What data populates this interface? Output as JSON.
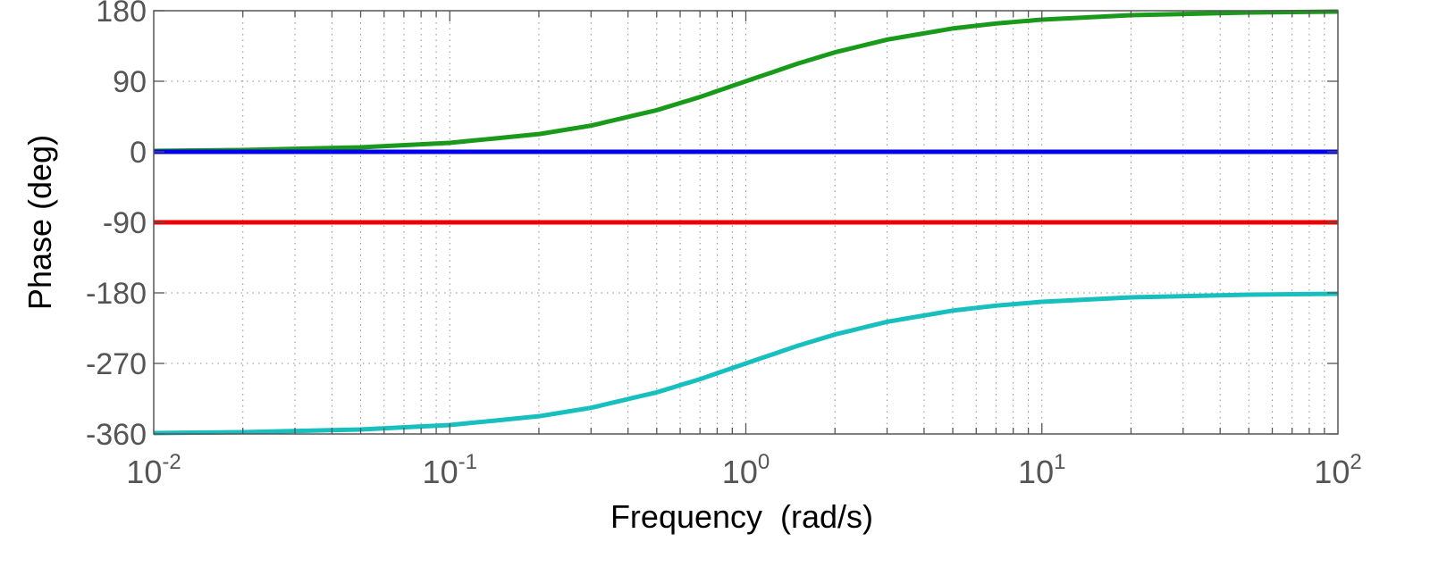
{
  "chart_data": {
    "type": "line",
    "title": "",
    "xlabel": "Frequency  (rad/s)",
    "ylabel": "Phase (deg)",
    "x_scale": "log",
    "xlim": [
      0.01,
      100
    ],
    "ylim": [
      -360,
      180
    ],
    "grid": true,
    "legend": "none",
    "x_ticks": [
      {
        "value": 0.01,
        "base": "10",
        "exp": "-2"
      },
      {
        "value": 0.1,
        "base": "10",
        "exp": "-1"
      },
      {
        "value": 1,
        "base": "10",
        "exp": "0"
      },
      {
        "value": 10,
        "base": "10",
        "exp": "1"
      },
      {
        "value": 100,
        "base": "10",
        "exp": "2"
      }
    ],
    "y_ticks": [
      {
        "value": 180,
        "label": "180"
      },
      {
        "value": 90,
        "label": "90"
      },
      {
        "value": 0,
        "label": "0"
      },
      {
        "value": -90,
        "label": "-90"
      },
      {
        "value": -180,
        "label": "-180"
      },
      {
        "value": -270,
        "label": "-270"
      },
      {
        "value": -360,
        "label": "-360"
      }
    ],
    "x": [
      0.01,
      0.02,
      0.05,
      0.1,
      0.2,
      0.3,
      0.5,
      0.7,
      1,
      1.5,
      2,
      3,
      5,
      7,
      10,
      20,
      50,
      100
    ],
    "series": [
      {
        "color": "#1a9a1a",
        "values": [
          1.1,
          2.3,
          5.7,
          11.4,
          22.6,
          33.4,
          53.1,
          69.9,
          90,
          112.6,
          126.9,
          143.1,
          157.4,
          163.7,
          168.6,
          174.3,
          177.7,
          178.9
        ]
      },
      {
        "color": "#0000ee",
        "values": [
          0,
          0,
          0,
          0,
          0,
          0,
          0,
          0,
          0,
          0,
          0,
          0,
          0,
          0,
          0,
          0,
          0,
          0
        ]
      },
      {
        "color": "#ee0000",
        "values": [
          -90,
          -90,
          -90,
          -90,
          -90,
          -90,
          -90,
          -90,
          -90,
          -90,
          -90,
          -90,
          -90,
          -90,
          -90,
          -90,
          -90,
          -90
        ]
      },
      {
        "color": "#17bfbf",
        "values": [
          -358.9,
          -357.7,
          -354.3,
          -348.6,
          -337.4,
          -326.6,
          -306.9,
          -290.1,
          -270,
          -247.4,
          -233.1,
          -216.9,
          -202.6,
          -196.3,
          -191.4,
          -185.7,
          -182.3,
          -181.1
        ]
      }
    ],
    "colors": {
      "axes": "#555555",
      "grid": "#8c8c8c",
      "tick_text": "#555555",
      "label_text": "#000000"
    }
  }
}
